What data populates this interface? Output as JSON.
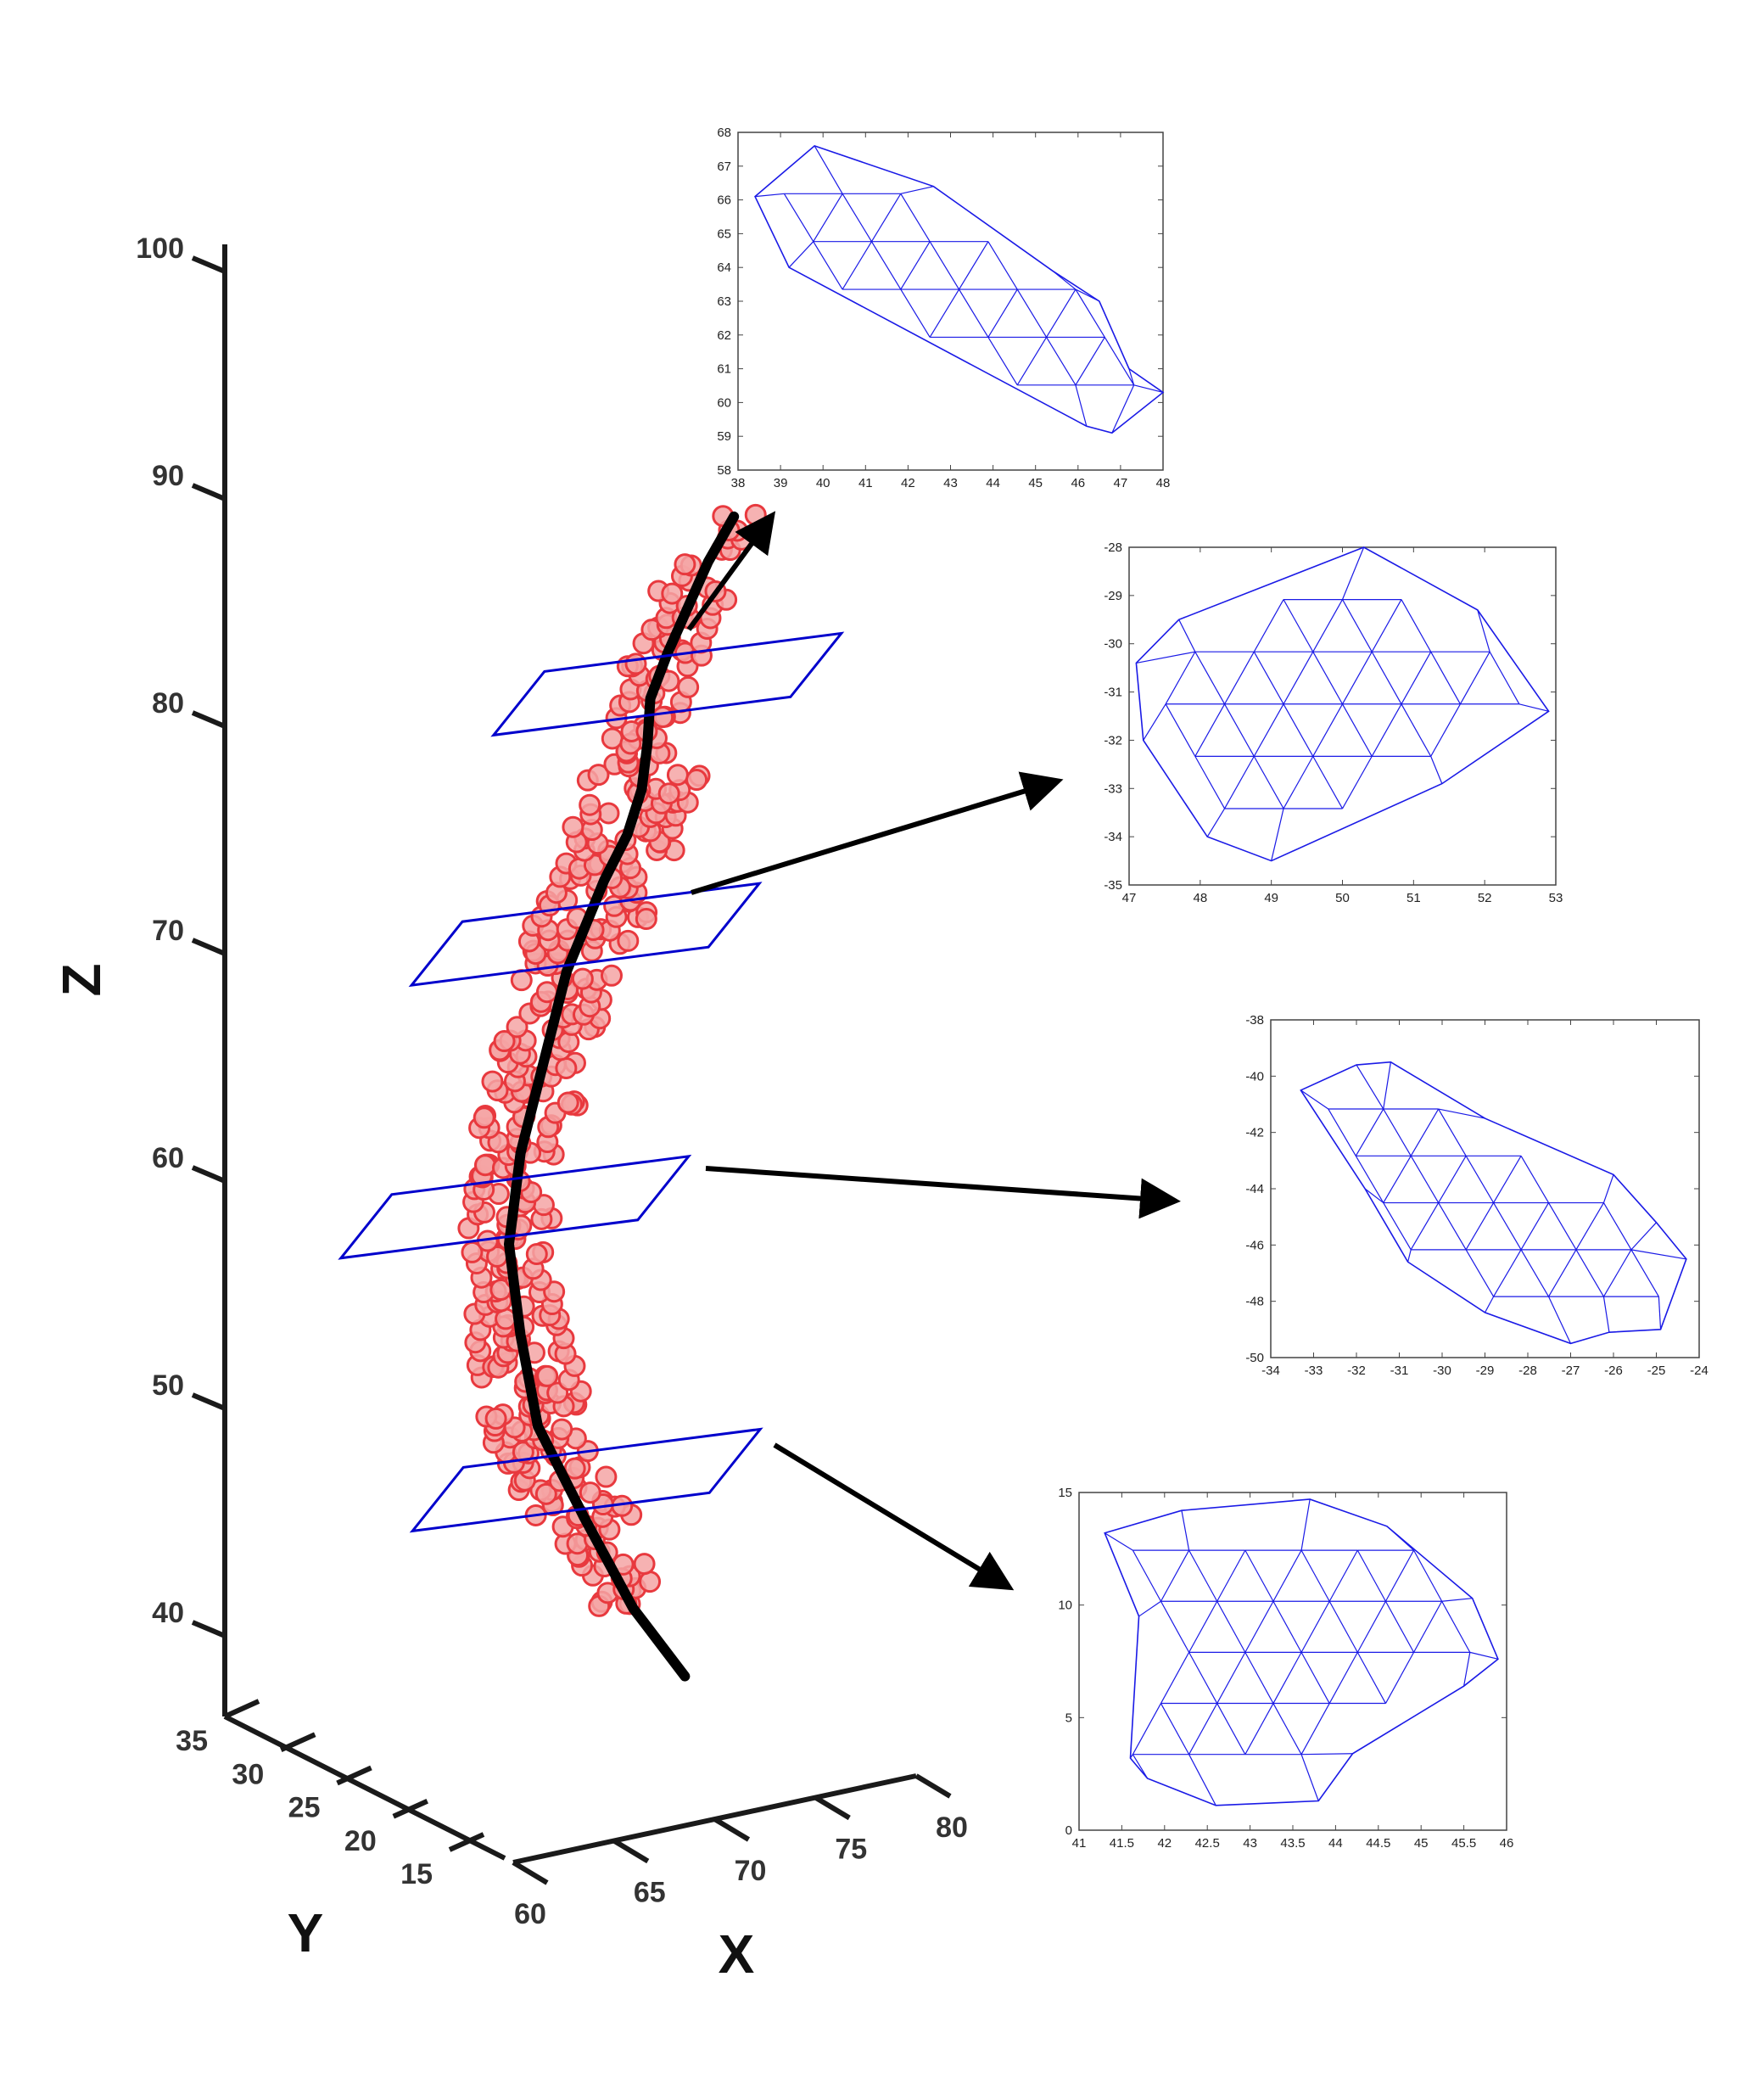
{
  "chart_data": [
    {
      "type": "scatter",
      "projection": "3d",
      "axes": {
        "x": {
          "label": "X",
          "ticks": [
            "60",
            "65",
            "70",
            "75",
            "80"
          ],
          "range": [
            60,
            80
          ]
        },
        "y": {
          "label": "Y",
          "ticks": [
            "15",
            "20",
            "25",
            "30",
            "35"
          ],
          "range": [
            15,
            35
          ]
        },
        "z": {
          "label": "Z",
          "ticks": [
            "40",
            "50",
            "60",
            "70",
            "80",
            "90",
            "100"
          ],
          "range": [
            40,
            100
          ]
        }
      },
      "grid": false,
      "colors": {
        "points": "#e8393e",
        "point_fill": "#f4a5a5",
        "centerline": "#000000",
        "planes": "#0000cc",
        "axis": "#1a1a1a"
      },
      "centerline": {
        "x": [
          72.1,
          70.3,
          68.6,
          67.0,
          66.4,
          66.0,
          66.4,
          67.2,
          68.0,
          69.3,
          70.1,
          70.6,
          70.8,
          70.9,
          71.5,
          72.2,
          72.9,
          73.8
        ],
        "z": [
          38.0,
          41.0,
          45.0,
          49.0,
          53.0,
          57.0,
          61.0,
          65.0,
          69.0,
          73.0,
          75.0,
          77.0,
          79.0,
          81.0,
          83.0,
          85.0,
          87.0,
          89.0
        ]
      },
      "slice_planes_z": [
        47,
        59,
        71,
        82
      ]
    },
    {
      "type": "mesh",
      "title": "",
      "xlim": [
        38,
        48
      ],
      "ylim": [
        58,
        68
      ],
      "xticks": [
        "38",
        "39",
        "40",
        "41",
        "42",
        "43",
        "44",
        "45",
        "46",
        "47",
        "48"
      ],
      "yticks": [
        "58",
        "59",
        "60",
        "61",
        "62",
        "63",
        "64",
        "65",
        "66",
        "67",
        "68"
      ],
      "outline": [
        [
          38.4,
          66.1
        ],
        [
          39.8,
          67.6
        ],
        [
          42.6,
          66.4
        ],
        [
          45.4,
          63.9
        ],
        [
          46.5,
          63.0
        ],
        [
          47.2,
          61.0
        ],
        [
          48.0,
          60.3
        ],
        [
          46.8,
          59.1
        ],
        [
          46.2,
          59.3
        ],
        [
          39.2,
          64.0
        ]
      ],
      "color": "#1a1ae6"
    },
    {
      "type": "mesh",
      "title": "",
      "xlim": [
        47,
        53
      ],
      "ylim": [
        -35,
        -28
      ],
      "xticks": [
        "47",
        "48",
        "49",
        "50",
        "51",
        "52",
        "53"
      ],
      "yticks": [
        "-28",
        "-29",
        "-30",
        "-31",
        "-32",
        "-33",
        "-34",
        "-35"
      ],
      "outline": [
        [
          47.1,
          -30.4
        ],
        [
          47.7,
          -29.5
        ],
        [
          50.3,
          -28.0
        ],
        [
          51.9,
          -29.3
        ],
        [
          52.9,
          -31.4
        ],
        [
          51.4,
          -32.9
        ],
        [
          49.0,
          -34.5
        ],
        [
          48.1,
          -34.0
        ],
        [
          47.2,
          -32.0
        ]
      ],
      "color": "#1a1ae6"
    },
    {
      "type": "mesh",
      "title": "",
      "xlim": [
        -34,
        -24
      ],
      "ylim": [
        -50,
        -38
      ],
      "xticks": [
        "-34",
        "-33",
        "-32",
        "-31",
        "-30",
        "-29",
        "-28",
        "-27",
        "-26",
        "-25",
        "-24"
      ],
      "yticks": [
        "-38",
        "-40",
        "-42",
        "-44",
        "-46",
        "-48",
        "-50"
      ],
      "outline": [
        [
          -33.3,
          -40.5
        ],
        [
          -32.0,
          -39.6
        ],
        [
          -31.2,
          -39.5
        ],
        [
          -29.0,
          -41.5
        ],
        [
          -26.0,
          -43.5
        ],
        [
          -25.0,
          -45.2
        ],
        [
          -24.3,
          -46.5
        ],
        [
          -24.9,
          -49.0
        ],
        [
          -26.1,
          -49.1
        ],
        [
          -27.0,
          -49.5
        ],
        [
          -29.0,
          -48.4
        ],
        [
          -30.8,
          -46.6
        ],
        [
          -31.8,
          -44.0
        ]
      ],
      "color": "#1a1ae6"
    },
    {
      "type": "mesh",
      "title": "",
      "xlim": [
        41,
        46
      ],
      "ylim": [
        0,
        15
      ],
      "xticks": [
        "41",
        "41.5",
        "42",
        "42.5",
        "43",
        "43.5",
        "44",
        "44.5",
        "45",
        "45.5",
        "46"
      ],
      "yticks": [
        "0",
        "5",
        "10",
        "15"
      ],
      "outline": [
        [
          41.3,
          13.2
        ],
        [
          42.2,
          14.2
        ],
        [
          43.7,
          14.7
        ],
        [
          44.6,
          13.5
        ],
        [
          45.6,
          10.3
        ],
        [
          45.9,
          7.6
        ],
        [
          45.5,
          6.4
        ],
        [
          44.2,
          3.4
        ],
        [
          43.8,
          1.3
        ],
        [
          42.6,
          1.1
        ],
        [
          41.8,
          2.3
        ],
        [
          41.6,
          3.2
        ],
        [
          41.7,
          9.5
        ]
      ],
      "color": "#1a1ae6"
    }
  ]
}
